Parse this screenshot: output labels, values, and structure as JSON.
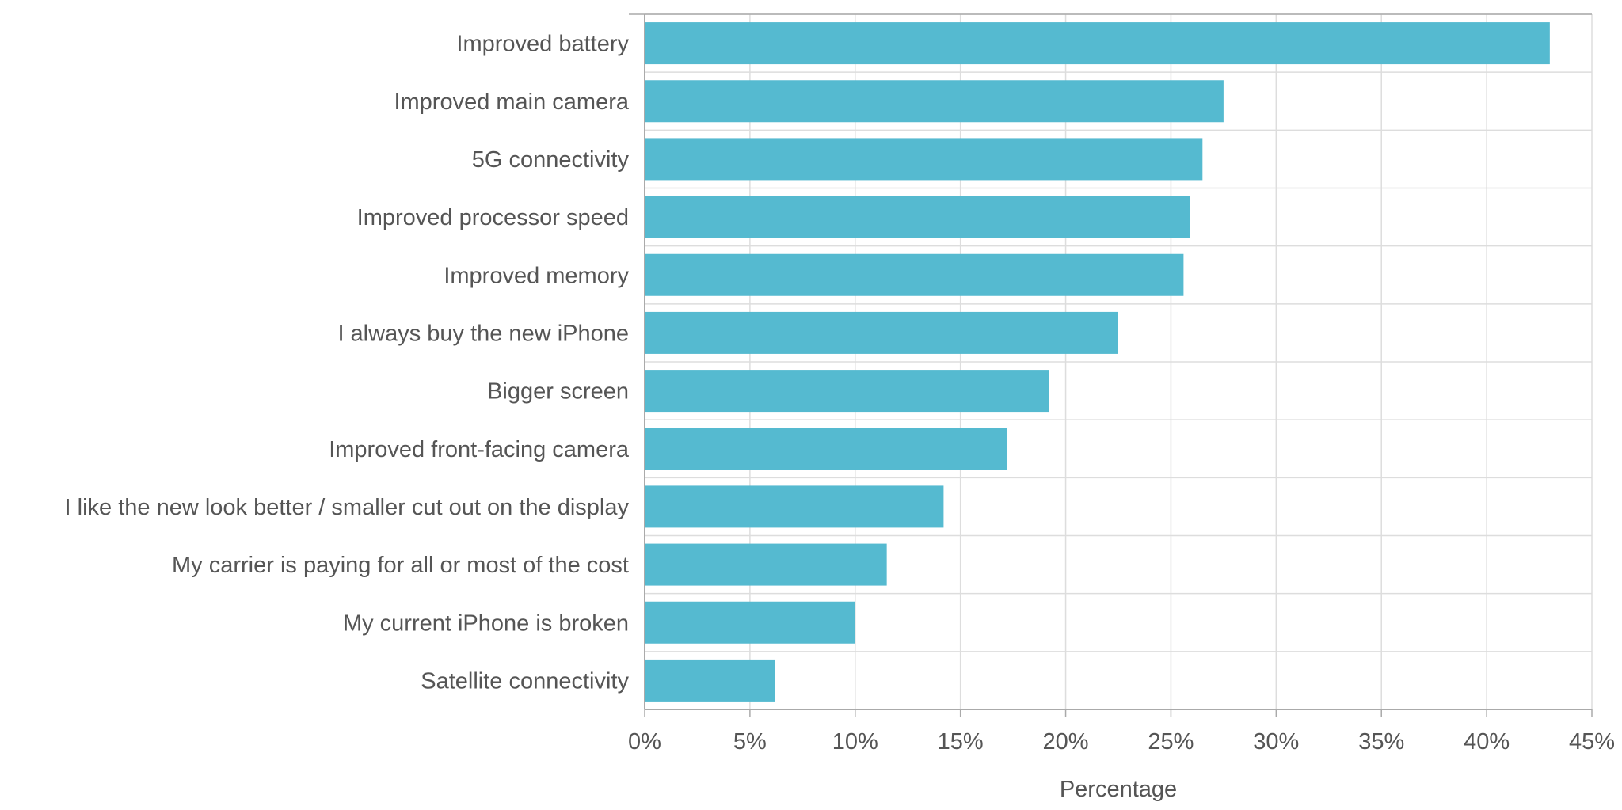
{
  "colors": {
    "bar": "#55bad0",
    "grid": "#dddddd",
    "axis": "#aaaaaa",
    "text": "#555555"
  },
  "chart_data": {
    "type": "bar",
    "orientation": "horizontal",
    "title": "",
    "xlabel": "Percentage",
    "ylabel": "",
    "xlim": [
      0,
      45
    ],
    "tick_step": 5,
    "tick_format": "percent",
    "grid": true,
    "legend": "none",
    "categories": [
      "Improved battery",
      "Improved main camera",
      "5G connectivity",
      "Improved processor speed",
      "Improved memory",
      "I always buy the new iPhone",
      "Bigger screen",
      "Improved front-facing camera",
      "I like the new look better / smaller cut out on the display",
      "My carrier is paying for all or most of the cost",
      "My current iPhone is broken",
      "Satellite connectivity"
    ],
    "values": [
      43.0,
      27.5,
      26.5,
      25.9,
      25.6,
      22.5,
      19.2,
      17.2,
      14.2,
      11.5,
      10.0,
      6.2
    ]
  }
}
